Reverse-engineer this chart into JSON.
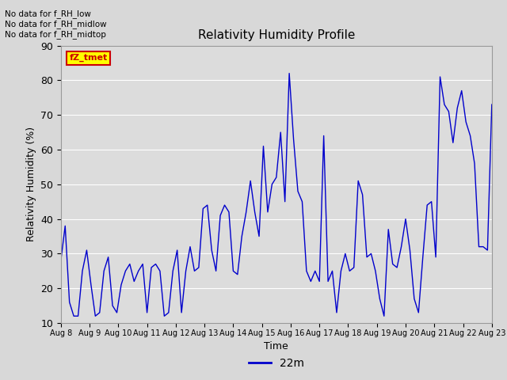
{
  "title": "Relativity Humidity Profile",
  "xlabel": "Time",
  "ylabel": "Relativity Humidity (%)",
  "ylim": [
    10,
    90
  ],
  "yticks": [
    10,
    20,
    30,
    40,
    50,
    60,
    70,
    80,
    90
  ],
  "line_color": "#0000CC",
  "line_label": "22m",
  "fig_bg_color": "#D8D8D8",
  "plot_bg_color": "#DCDCDC",
  "annotations": [
    "No data for f_RH_low",
    "No data for f_RH_midlow",
    "No data for f_RH_midtop"
  ],
  "legend_box_facecolor": "#FFFF00",
  "legend_box_edgecolor": "#CC0000",
  "legend_text_color": "#CC0000",
  "legend_label": "fZ_tmet",
  "x_tick_labels": [
    "Aug 8",
    "Aug 9",
    "Aug 10",
    "Aug 11",
    "Aug 12",
    "Aug 13",
    "Aug 14",
    "Aug 15",
    "Aug 16",
    "Aug 17",
    "Aug 18",
    "Aug 19",
    "Aug 20",
    "Aug 21",
    "Aug 22",
    "Aug 23"
  ],
  "humidity_values": [
    28,
    38,
    16,
    12,
    12,
    25,
    31,
    21,
    12,
    13,
    25,
    29,
    15,
    13,
    21,
    25,
    27,
    22,
    25,
    27,
    13,
    26,
    27,
    25,
    12,
    13,
    25,
    31,
    13,
    25,
    32,
    25,
    26,
    43,
    44,
    31,
    25,
    41,
    44,
    42,
    25,
    24,
    35,
    42,
    51,
    42,
    35,
    61,
    42,
    50,
    52,
    65,
    45,
    82,
    63,
    48,
    45,
    25,
    22,
    25,
    22,
    64,
    22,
    25,
    13,
    25,
    30,
    25,
    26,
    51,
    47,
    29,
    30,
    25,
    17,
    12,
    37,
    27,
    26,
    32,
    40,
    31,
    17,
    13,
    29,
    44,
    45,
    29,
    81,
    73,
    71,
    62,
    72,
    77,
    68,
    64,
    56,
    32,
    32,
    31,
    73
  ]
}
